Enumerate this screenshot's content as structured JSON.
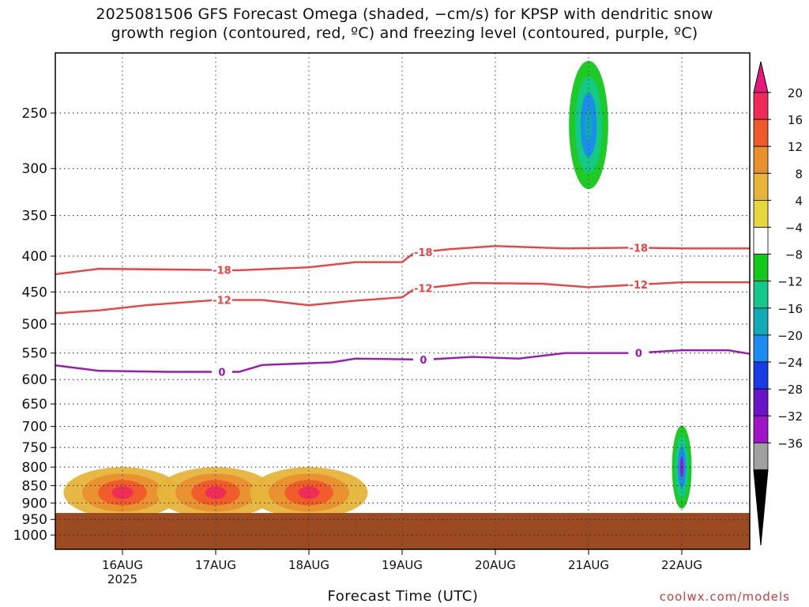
{
  "title": {
    "line1": "2025081506 GFS Forecast Omega (shaded, −cm/s) for KPSP with dendritic snow",
    "line2": "growth region (contoured, red, ºC) and freezing level (contoured, purple, ºC)"
  },
  "credit": "coolwx.com/models",
  "chart_data": {
    "type": "heatmap",
    "xlabel": "Forecast Time (UTC)",
    "ylabel": "",
    "x_range": [
      "2025-08-15T06:00",
      "2025-08-22T18:00"
    ],
    "x_ticks": [
      {
        "t": "2025-08-16T00:00",
        "label": "16AUG",
        "sub": "2025"
      },
      {
        "t": "2025-08-17T00:00",
        "label": "17AUG",
        "sub": ""
      },
      {
        "t": "2025-08-18T00:00",
        "label": "18AUG",
        "sub": ""
      },
      {
        "t": "2025-08-19T00:00",
        "label": "19AUG",
        "sub": ""
      },
      {
        "t": "2025-08-20T00:00",
        "label": "20AUG",
        "sub": ""
      },
      {
        "t": "2025-08-21T00:00",
        "label": "21AUG",
        "sub": ""
      },
      {
        "t": "2025-08-22T00:00",
        "label": "22AUG",
        "sub": ""
      }
    ],
    "y_scale": "log",
    "y_range_hpa": [
      200,
      1050
    ],
    "y_ticks": [
      250,
      300,
      350,
      400,
      450,
      500,
      550,
      600,
      650,
      700,
      750,
      800,
      850,
      900,
      950,
      1000
    ],
    "terrain_surface_hpa": 930,
    "colorbar": {
      "labels": [
        "20",
        "16",
        "12",
        "8",
        "4",
        "−4",
        "−8",
        "−12",
        "−16",
        "−20",
        "−24",
        "−28",
        "−32",
        "−36"
      ],
      "bands": [
        {
          "range": [
            16,
            20
          ],
          "color": "#ee2a5a"
        },
        {
          "range": [
            12,
            16
          ],
          "color": "#f05a2a"
        },
        {
          "range": [
            8,
            12
          ],
          "color": "#e8902e"
        },
        {
          "range": [
            4,
            8
          ],
          "color": "#e6b43a"
        },
        {
          "range": [
            2,
            4
          ],
          "color": "#e6d83a"
        },
        {
          "range": [
            -4,
            2
          ],
          "color": "#ffffff"
        },
        {
          "range": [
            -8,
            -4
          ],
          "color": "#12c81a"
        },
        {
          "range": [
            -12,
            -8
          ],
          "color": "#12c88a"
        },
        {
          "range": [
            -16,
            -12
          ],
          "color": "#12aab4"
        },
        {
          "range": [
            -20,
            -16
          ],
          "color": "#1a8cf0"
        },
        {
          "range": [
            -24,
            -20
          ],
          "color": "#1a3ce6"
        },
        {
          "range": [
            -28,
            -24
          ],
          "color": "#6a14c8"
        },
        {
          "range": [
            -32,
            -28
          ],
          "color": "#a014c8"
        },
        {
          "range": [
            -36,
            -32
          ],
          "color": "#a0a0a0"
        }
      ],
      "top_arrow_color": "#e4197a",
      "bottom_arrow_color": "#000000"
    },
    "contours": [
      {
        "name": "-18",
        "color": "#f04040",
        "points": [
          [
            "2025-08-15T06:00",
            425
          ],
          [
            "2025-08-15T18:00",
            417
          ],
          [
            "2025-08-16T12:00",
            418
          ],
          [
            "2025-08-17T06:00",
            419
          ],
          [
            "2025-08-18T00:00",
            415
          ],
          [
            "2025-08-18T12:00",
            408
          ],
          [
            "2025-08-19T00:00",
            408
          ],
          [
            "2025-08-19T03:00",
            396
          ],
          [
            "2025-08-19T12:00",
            391
          ],
          [
            "2025-08-20T00:00",
            387
          ],
          [
            "2025-08-20T18:00",
            390
          ],
          [
            "2025-08-21T12:00",
            389
          ],
          [
            "2025-08-22T00:00",
            390
          ],
          [
            "2025-08-22T18:00",
            390
          ]
        ]
      },
      {
        "name": "-12",
        "color": "#f04040",
        "points": [
          [
            "2025-08-15T06:00",
            483
          ],
          [
            "2025-08-15T18:00",
            478
          ],
          [
            "2025-08-16T06:00",
            470
          ],
          [
            "2025-08-17T00:00",
            462
          ],
          [
            "2025-08-17T12:00",
            462
          ],
          [
            "2025-08-18T00:00",
            470
          ],
          [
            "2025-08-18T12:00",
            463
          ],
          [
            "2025-08-19T00:00",
            458
          ],
          [
            "2025-08-19T03:00",
            446
          ],
          [
            "2025-08-19T18:00",
            437
          ],
          [
            "2025-08-20T12:00",
            438
          ],
          [
            "2025-08-21T00:00",
            443
          ],
          [
            "2025-08-22T00:00",
            436
          ],
          [
            "2025-08-22T18:00",
            436
          ]
        ]
      },
      {
        "name": "0",
        "color": "#9a18b4",
        "points": [
          [
            "2025-08-15T06:00",
            572
          ],
          [
            "2025-08-15T18:00",
            583
          ],
          [
            "2025-08-16T12:00",
            585
          ],
          [
            "2025-08-17T06:00",
            585
          ],
          [
            "2025-08-17T12:00",
            572
          ],
          [
            "2025-08-18T06:00",
            567
          ],
          [
            "2025-08-18T12:00",
            560
          ],
          [
            "2025-08-19T06:00",
            562
          ],
          [
            "2025-08-19T18:00",
            557
          ],
          [
            "2025-08-20T06:00",
            560
          ],
          [
            "2025-08-20T18:00",
            550
          ],
          [
            "2025-08-21T12:00",
            550
          ],
          [
            "2025-08-22T00:00",
            545
          ],
          [
            "2025-08-22T12:00",
            545
          ],
          [
            "2025-08-22T18:00",
            552
          ]
        ]
      }
    ],
    "shaded_features": [
      {
        "t": "2025-08-16T00:00",
        "p": 870,
        "dt_h": 6,
        "dp": 40,
        "value": 20
      },
      {
        "t": "2025-08-17T00:00",
        "p": 870,
        "dt_h": 6,
        "dp": 40,
        "value": 20
      },
      {
        "t": "2025-08-18T00:00",
        "p": 870,
        "dt_h": 6,
        "dp": 40,
        "value": 20
      },
      {
        "t": "2025-08-22T00:00",
        "p": 800,
        "dt_h": 1,
        "dp": 60,
        "value": -30
      },
      {
        "t": "2025-08-21T00:00",
        "p": 260,
        "dt_h": 2,
        "dp": 30,
        "value": -16
      }
    ]
  }
}
